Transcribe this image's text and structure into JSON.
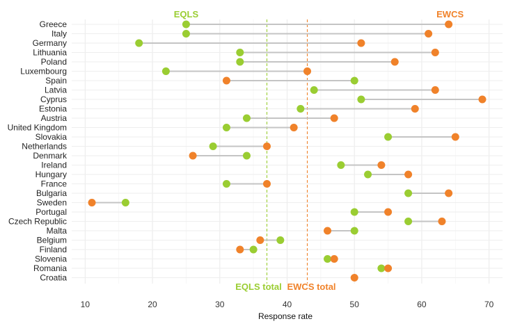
{
  "chart_data": {
    "type": "dumbbell",
    "xlabel": "Response rate",
    "xlim": [
      8,
      72
    ],
    "x_ticks": [
      10,
      20,
      30,
      40,
      50,
      60,
      70
    ],
    "grid": true,
    "series": [
      {
        "name": "EQLS",
        "color": "#9acd32"
      },
      {
        "name": "EWCS",
        "color": "#f0822a"
      }
    ],
    "reference_lines": [
      {
        "label": "EQLS total",
        "value": 37,
        "color": "#9acd32"
      },
      {
        "label": "EWCS total",
        "value": 43,
        "color": "#f0822a"
      }
    ],
    "categories": [
      "Greece",
      "Italy",
      "Germany",
      "Lithuania",
      "Poland",
      "Luxembourg",
      "Spain",
      "Latvia",
      "Cyprus",
      "Estonia",
      "Austria",
      "United Kingdom",
      "Slovakia",
      "Netherlands",
      "Denmark",
      "Ireland",
      "Hungary",
      "France",
      "Bulgaria",
      "Sweden",
      "Portugal",
      "Czech Republic",
      "Malta",
      "Belgium",
      "Finland",
      "Slovenia",
      "Romania",
      "Croatia"
    ],
    "eqls": [
      25,
      25,
      18,
      33,
      33,
      22,
      50,
      44,
      51,
      42,
      34,
      31,
      55,
      29,
      34,
      48,
      52,
      31,
      58,
      16,
      50,
      58,
      50,
      39,
      35,
      46,
      54,
      null
    ],
    "ewcs": [
      64,
      61,
      51,
      62,
      56,
      43,
      31,
      62,
      69,
      59,
      47,
      41,
      65,
      37,
      26,
      54,
      58,
      37,
      64,
      11,
      55,
      63,
      46,
      36,
      33,
      47,
      55,
      50
    ]
  }
}
